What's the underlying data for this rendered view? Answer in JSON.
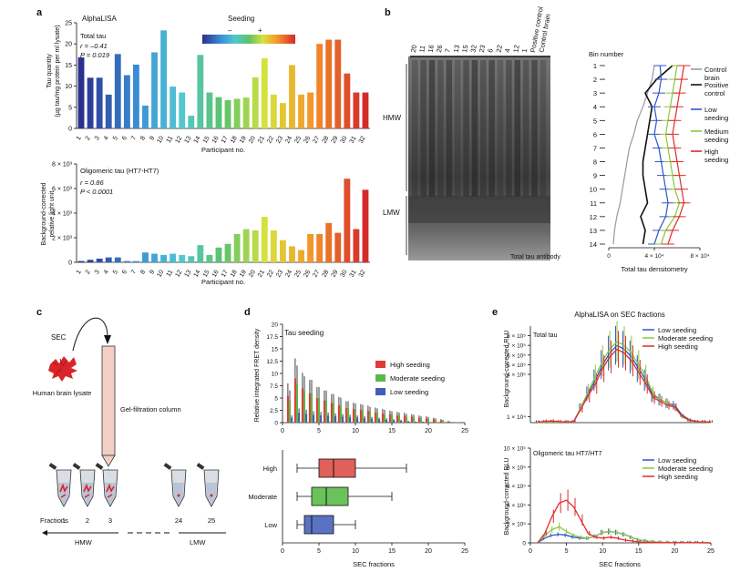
{
  "panels": {
    "a": "a",
    "b": "b",
    "c": "c",
    "d": "d",
    "e": "e"
  },
  "a_top": {
    "assay": "AlphaLISA",
    "seeding_label": "Seeding",
    "minus": "–",
    "plus": "+",
    "stat_name": "Total tau",
    "stat_r": "r = –0.41",
    "stat_p": "P = 0.019",
    "ylabel1": "Tau quantity",
    "ylabel2": "(µg tau/mg protein per ml lysate)",
    "xlabel": "Participant no."
  },
  "a_bottom": {
    "stat_name": "Oligomeric tau (HT7-HT7)",
    "stat_r": "r = 0.86",
    "stat_p": "P < 0.0001",
    "ylabel1": "Background-corrected",
    "ylabel2": "relative light unit",
    "xlabel": "Participant no."
  },
  "b": {
    "lane_labels": [
      "20",
      "11",
      "16",
      "26",
      "7",
      "13",
      "15",
      "32",
      "23",
      "6",
      "22",
      "4",
      "12",
      "1",
      "Positive control",
      "Control brain"
    ],
    "hmw": "HMW",
    "lmw": "LMW",
    "antibody": "Total tau antibody",
    "bin_title": "Bin number",
    "bins": [
      "1",
      "2",
      "3",
      "4",
      "5",
      "6",
      "7",
      "8",
      "9",
      "10",
      "11",
      "12",
      "13",
      "14"
    ],
    "xlabel": "Total tau densitometry",
    "xticks": [
      "0",
      "4 × 10⁴",
      "8 × 10⁴"
    ],
    "legend": [
      "Control brain",
      "Positive control",
      "Low seeding",
      "Medium seeding",
      "High seeding"
    ]
  },
  "c": {
    "sec": "SEC",
    "lysate": "Human brain lysate",
    "column": "Gel-filtration column",
    "fractions": "Fractions",
    "tube_labels": [
      "1",
      "2",
      "3",
      "24",
      "25"
    ],
    "hmw": "HMW",
    "lmw": "LMW"
  },
  "d": {
    "title": "Tau seeding",
    "ylabel": "Relative integrated FRET density",
    "xlabel": "SEC fractions",
    "legend": [
      "High seeding",
      "Moderate seeding",
      "Low seeding"
    ],
    "box_labels": [
      "High",
      "Moderate",
      "Low"
    ]
  },
  "e": {
    "title": "AlphaLISA on SEC fractions",
    "top_label": "Total tau",
    "bottom_label": "Oligomeric tau HT7/HT7",
    "ylabel": "Background-corrected RLU",
    "xlabel": "SEC fractions",
    "legend": [
      "Low seeding",
      "Moderate seeding",
      "High seeding"
    ]
  },
  "chart_data": [
    {
      "type": "bar",
      "panel": "a-top",
      "categories": [
        "1",
        "2",
        "3",
        "4",
        "5",
        "6",
        "7",
        "8",
        "9",
        "10",
        "11",
        "12",
        "13",
        "14",
        "15",
        "16",
        "17",
        "18",
        "19",
        "20",
        "21",
        "22",
        "23",
        "24",
        "25",
        "26",
        "27",
        "28",
        "29",
        "30",
        "31",
        "32"
      ],
      "values": [
        16.8,
        12,
        12,
        8,
        17.6,
        12.6,
        15.1,
        5.4,
        18,
        23.2,
        9.9,
        8.5,
        3,
        17.4,
        8.5,
        7.4,
        6.7,
        7,
        7.3,
        12.1,
        16.6,
        8,
        6,
        15,
        8,
        8.5,
        20,
        21,
        21,
        13,
        8.5,
        8.5
      ],
      "ylim": [
        0,
        25
      ],
      "yticks": [
        0,
        5,
        10,
        15,
        20,
        25
      ],
      "ylabel": "Tau quantity (µg tau/mg protein per ml lysate)",
      "xlabel": "Participant no."
    },
    {
      "type": "bar",
      "panel": "a-bottom",
      "categories": [
        "1",
        "2",
        "3",
        "4",
        "5",
        "6",
        "7",
        "8",
        "9",
        "10",
        "11",
        "12",
        "13",
        "14",
        "15",
        "16",
        "17",
        "18",
        "19",
        "20",
        "21",
        "22",
        "23",
        "24",
        "25",
        "26",
        "27",
        "28",
        "29",
        "30",
        "31",
        "32"
      ],
      "values": [
        100,
        200,
        300,
        400,
        400,
        100,
        100,
        800,
        700,
        600,
        700,
        600,
        500,
        1400,
        600,
        1200,
        1500,
        2300,
        2700,
        2600,
        3700,
        2600,
        1800,
        1300,
        1000,
        2300,
        2300,
        3200,
        2400,
        6800,
        2700,
        5900
      ],
      "ylim": [
        0,
        8000
      ],
      "yticks": [
        "0",
        "2 × 10³",
        "4 × 10³",
        "6 × 10³",
        "8 × 10³"
      ],
      "ylabel": "Background-corrected relative light unit",
      "xlabel": "Participant no."
    },
    {
      "type": "line",
      "panel": "b-right",
      "y_bins": [
        1,
        2,
        3,
        4,
        5,
        6,
        7,
        8,
        9,
        10,
        11,
        12,
        13,
        14
      ],
      "xlim": [
        0,
        80000
      ],
      "series": [
        {
          "name": "Control brain",
          "values": [
            40000,
            38000,
            34000,
            30000,
            25000,
            22000,
            18000,
            16000,
            14000,
            12000,
            10000,
            7000,
            5000,
            4000
          ]
        },
        {
          "name": "Positive control",
          "values": [
            56000,
            42000,
            32000,
            38000,
            36000,
            34000,
            32000,
            30000,
            30000,
            32000,
            34000,
            28000,
            32000,
            30000
          ]
        },
        {
          "name": "Low seeding",
          "values": [
            45000,
            46000,
            44000,
            40000,
            42000,
            40000,
            44000,
            46000,
            48000,
            50000,
            52000,
            50000,
            44000,
            40000
          ]
        },
        {
          "name": "Medium seeding",
          "values": [
            60000,
            58000,
            56000,
            54000,
            52000,
            50000,
            52000,
            54000,
            56000,
            58000,
            62000,
            58000,
            50000,
            46000
          ]
        },
        {
          "name": "High seeding",
          "values": [
            66000,
            64000,
            62000,
            60000,
            58000,
            56000,
            58000,
            60000,
            62000,
            64000,
            66000,
            62000,
            56000,
            52000
          ]
        }
      ],
      "xlabel": "Total tau densitometry"
    },
    {
      "type": "bar",
      "panel": "d-top",
      "x": [
        1,
        2,
        3,
        4,
        5,
        6,
        7,
        8,
        9,
        10,
        11,
        12,
        13,
        14,
        15,
        16,
        17,
        18,
        19,
        20,
        21,
        22,
        23,
        24,
        25
      ],
      "series": [
        {
          "name": "High seeding",
          "values": [
            5.5,
            9,
            7,
            6,
            5,
            4.5,
            4,
            3.6,
            3,
            2.8,
            2.6,
            2.4,
            2.1,
            1.9,
            1.7,
            1.5,
            1.4,
            1.2,
            1,
            0.9,
            0.7,
            0.5,
            0.3,
            0.1,
            0
          ]
        },
        {
          "name": "Moderate seeding",
          "values": [
            4.5,
            8,
            6.5,
            6,
            5,
            4.5,
            4,
            3.5,
            3,
            2.7,
            2.5,
            2.2,
            2,
            1.8,
            1.6,
            1.4,
            1.2,
            1.1,
            0.9,
            0.8,
            0.6,
            0.4,
            0.2,
            0.1,
            0
          ]
        },
        {
          "name": "Low seeding",
          "values": [
            1,
            2,
            1.8,
            1.6,
            1.5,
            1.4,
            1.3,
            1.2,
            1.1,
            1,
            0.9,
            0.8,
            0.7,
            0.6,
            0.5,
            0.4,
            0.3,
            0.2,
            0.2,
            0.1,
            0.1,
            0,
            0,
            0,
            0
          ]
        }
      ],
      "ylim": [
        0,
        20
      ],
      "yticks": [
        0,
        2.5,
        5,
        7.5,
        10,
        12.5,
        15,
        17.5,
        20
      ],
      "ylabel": "Relative integrated FRET density"
    },
    {
      "type": "box",
      "panel": "d-bottom",
      "categories": [
        "High",
        "Moderate",
        "Low"
      ],
      "boxes": [
        {
          "min": 2,
          "q1": 5,
          "median": 7,
          "q3": 10,
          "max": 17
        },
        {
          "min": 2,
          "q1": 4,
          "median": 6,
          "q3": 9,
          "max": 15
        },
        {
          "min": 2,
          "q1": 3,
          "median": 4,
          "q3": 7,
          "max": 10
        }
      ],
      "xlim": [
        0,
        25
      ],
      "xticks": [
        0,
        5,
        10,
        15,
        20,
        25
      ],
      "xlabel": "SEC fractions"
    },
    {
      "type": "line",
      "panel": "e-top",
      "x": [
        1,
        2,
        3,
        4,
        5,
        6,
        7,
        8,
        9,
        10,
        11,
        12,
        13,
        14,
        15,
        16,
        17,
        18,
        19,
        20,
        21,
        22,
        23,
        24,
        25
      ],
      "series": [
        {
          "name": "Low seeding",
          "values": [
            0.3,
            0.4,
            0.5,
            0.4,
            0.3,
            0.5,
            8,
            15,
            22,
            30,
            36,
            40,
            38,
            34,
            28,
            22,
            14,
            12,
            10,
            9,
            4,
            1.5,
            0.5,
            0.4,
            0.3
          ]
        },
        {
          "name": "Moderate seeding",
          "values": [
            0.2,
            0.3,
            0.4,
            0.3,
            0.3,
            0.4,
            8,
            16,
            24,
            32,
            38,
            42,
            40,
            36,
            30,
            24,
            15,
            12,
            10,
            8,
            3,
            1.2,
            0.4,
            0.3,
            0.2
          ]
        },
        {
          "name": "High seeding",
          "values": [
            0.3,
            0.7,
            0.8,
            0.5,
            0.4,
            0.5,
            7,
            14,
            20,
            28,
            34,
            38,
            36,
            32,
            26,
            20,
            13,
            11,
            9,
            8,
            3.5,
            1.3,
            0.5,
            0.4,
            0.3
          ]
        }
      ],
      "yticks": [
        "1 × 10⁴",
        "4 × 10⁵",
        "5 × 10⁵",
        "6 × 10⁵",
        "7 × 10⁵",
        "8 × 10⁵"
      ],
      "ylabel": "Background-corrected RLU"
    },
    {
      "type": "line",
      "panel": "e-bottom",
      "x": [
        1,
        2,
        3,
        4,
        5,
        6,
        7,
        8,
        9,
        10,
        11,
        12,
        13,
        14,
        15,
        16,
        17,
        18,
        19,
        20,
        21,
        22,
        23,
        24,
        25
      ],
      "series": [
        {
          "name": "Low seeding",
          "values": [
            0,
            5000,
            8000,
            9000,
            8000,
            6000,
            5000,
            5000,
            7000,
            11000,
            12000,
            11000,
            9000,
            6000,
            3000,
            2000,
            1000,
            500,
            300,
            200,
            100,
            100,
            100,
            100,
            0
          ]
        },
        {
          "name": "Moderate seeding",
          "values": [
            0,
            8000,
            14000,
            17000,
            12000,
            8000,
            6000,
            5000,
            7000,
            11000,
            12000,
            11000,
            9000,
            6000,
            3000,
            2000,
            1000,
            500,
            300,
            200,
            100,
            100,
            100,
            100,
            0
          ]
        },
        {
          "name": "High seeding",
          "values": [
            0,
            10000,
            28000,
            42000,
            45000,
            38000,
            24000,
            10000,
            6000,
            5000,
            6000,
            5000,
            3000,
            2000,
            1000,
            500,
            300,
            200,
            100,
            100,
            100,
            100,
            100,
            0,
            0
          ]
        }
      ],
      "ylim": [
        0,
        100000
      ],
      "yticks": [
        "0",
        "2 × 10⁵",
        "4 × 10⁵",
        "6 × 10⁵",
        "8 × 10⁵",
        "10 × 10⁵"
      ],
      "xlim": [
        0,
        25
      ],
      "xticks": [
        0,
        5,
        10,
        15,
        20,
        25
      ],
      "ylabel": "Background-corrected RLU",
      "xlabel": "SEC fractions"
    }
  ]
}
